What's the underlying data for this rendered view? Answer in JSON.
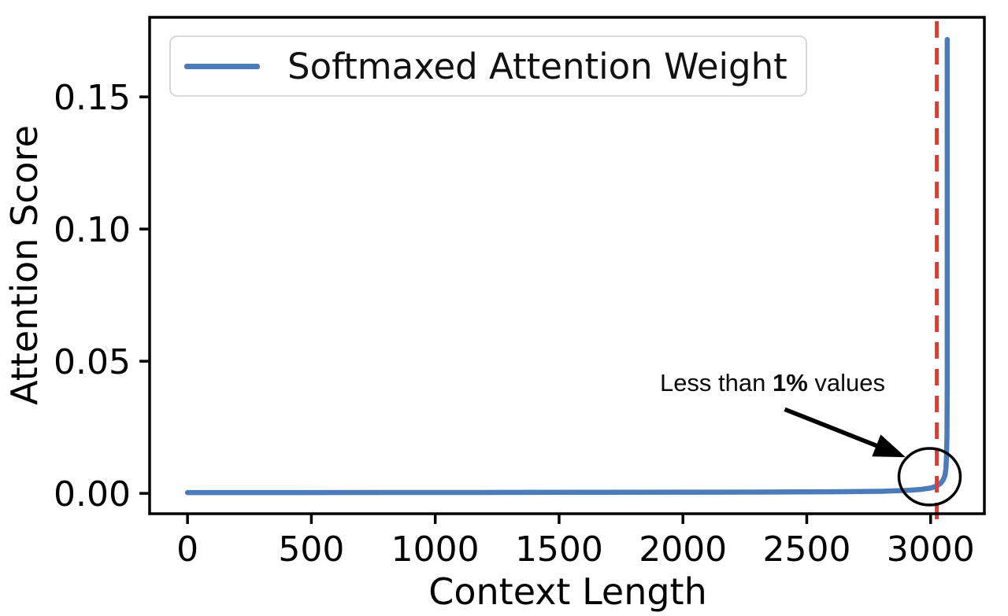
{
  "figure": {
    "xlabel": "Context Length",
    "ylabel": "Attention Score",
    "legend": {
      "label": "Softmaxed Attention Weight"
    },
    "annotation": {
      "prefix": "Less than ",
      "bold": "1%",
      "suffix": " values",
      "full_text": "Less than 1% values"
    }
  },
  "chart_data": {
    "type": "line",
    "title": "",
    "xlabel": "Context Length",
    "ylabel": "Attention Score",
    "grid": false,
    "legend_position": "upper left",
    "xlim": [
      -153,
      3217
    ],
    "ylim": [
      -0.0077,
      0.1801
    ],
    "xticks": [
      0,
      500,
      1000,
      1500,
      2000,
      2500,
      3000
    ],
    "yticks": [
      0,
      0.05,
      0.1,
      0.15
    ],
    "ytick_labels": [
      "0.00",
      "0.05",
      "0.10",
      "0.15"
    ],
    "series": [
      {
        "name": "Softmaxed Attention Weight",
        "color": "#4b7cb8",
        "points": [
          [
            0,
            0.0003
          ],
          [
            400,
            0.0003
          ],
          [
            800,
            0.00032
          ],
          [
            1200,
            0.00035
          ],
          [
            1600,
            0.0004
          ],
          [
            2000,
            0.00045
          ],
          [
            2300,
            0.0005
          ],
          [
            2600,
            0.0006
          ],
          [
            2800,
            0.0008
          ],
          [
            2900,
            0.0011
          ],
          [
            2960,
            0.0015
          ],
          [
            3000,
            0.002
          ],
          [
            3025,
            0.0028
          ],
          [
            3040,
            0.0038
          ],
          [
            3050,
            0.005
          ],
          [
            3058,
            0.0068
          ],
          [
            3062,
            0.0095
          ],
          [
            3064,
            0.014
          ],
          [
            3066,
            0.022
          ],
          [
            3067,
            0.04
          ],
          [
            3067,
            0.1717
          ]
        ]
      }
    ],
    "vline": {
      "x": 3025,
      "color": "#e5382e",
      "style": "dashed"
    },
    "annotation": {
      "text": "Less than 1% values",
      "arrow": {
        "x1": 2411,
        "y1": 0.0318,
        "x2": 2899,
        "y2": 0.0137
      },
      "circle": {
        "cx": 2996,
        "cy": 0.0063,
        "rx": 124,
        "ry": 0.0107
      }
    }
  }
}
